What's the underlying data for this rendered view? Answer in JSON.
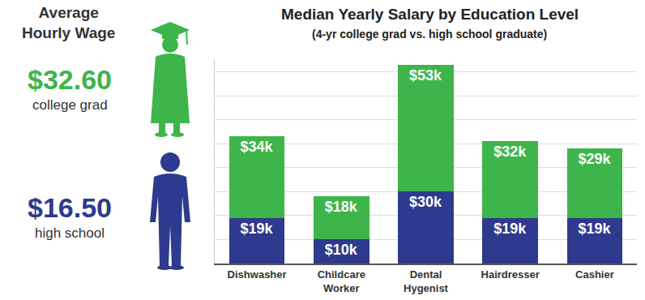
{
  "chart_data": {
    "type": "bar",
    "title": "Median Yearly Salary by Education Level",
    "subtitle": "(4-yr college grad vs. high school graduate)",
    "categories": [
      "Dishwasher",
      "Childcare Worker",
      "Dental Hygenist",
      "Hairdresser",
      "Cashier"
    ],
    "series": [
      {
        "name": "high school",
        "color": "#2e3a8e",
        "values": [
          19,
          10,
          30,
          19,
          19
        ],
        "value_labels": [
          "$19k",
          "$10k",
          "$30k",
          "$19k",
          "$19k"
        ]
      },
      {
        "name": "college grad",
        "color": "#3db54a",
        "values": [
          34,
          18,
          53,
          32,
          29
        ],
        "value_labels": [
          "$34k",
          "$18k",
          "$53k",
          "$32k",
          "$29k"
        ]
      }
    ],
    "stacked": true,
    "data_labels": true,
    "ylim": [
      0,
      85
    ],
    "yticks": [
      0,
      10,
      20,
      30,
      40,
      50,
      60,
      70,
      80
    ],
    "grid": true,
    "tick_labels": "x",
    "annotations": [
      "Average Hourly Wage",
      "$32.60",
      "$16.50"
    ]
  }
}
